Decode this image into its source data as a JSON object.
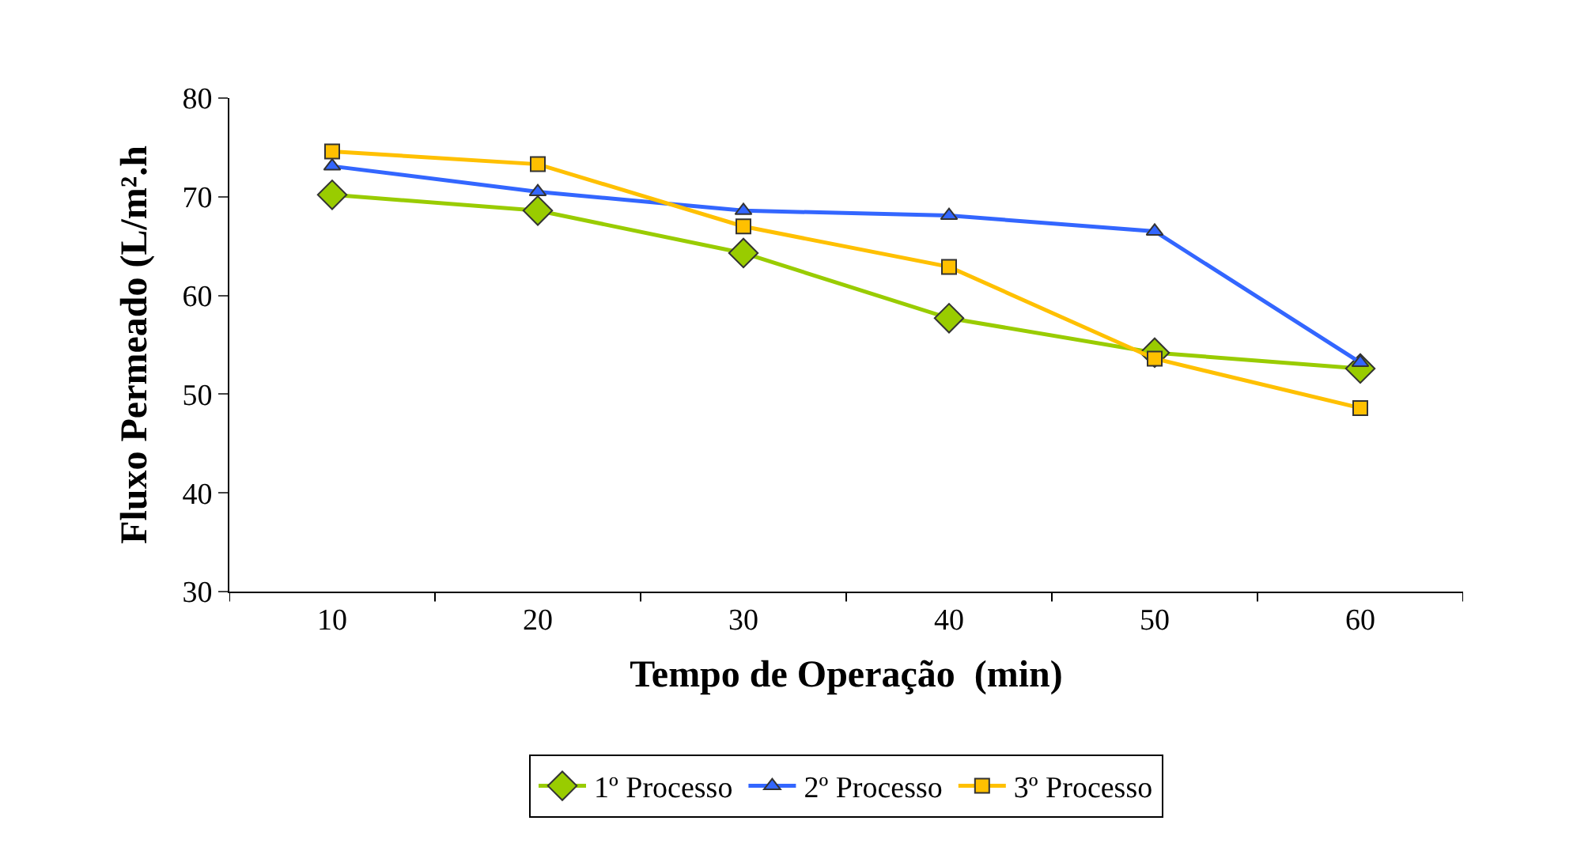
{
  "chart_data": {
    "type": "line",
    "xlabel": "Tempo de Operação  (min)",
    "ylabel": "Fluxo Permeado (L/m².h",
    "categories": [
      "10",
      "20",
      "30",
      "40",
      "50",
      "60"
    ],
    "series": [
      {
        "name": "1º Processo",
        "color": "#99cc00",
        "marker": "diamond",
        "values": [
          70.2,
          68.6,
          64.3,
          57.7,
          54.2,
          52.6
        ]
      },
      {
        "name": "2º Processo",
        "color": "#3366ff",
        "marker": "triangle",
        "values": [
          73.1,
          70.5,
          68.6,
          68.1,
          66.5,
          53.2
        ]
      },
      {
        "name": "3º Processo",
        "color": "#ffc000",
        "marker": "square",
        "values": [
          74.6,
          73.3,
          67.0,
          62.9,
          53.6,
          48.6
        ]
      }
    ],
    "ylim": [
      30,
      80
    ],
    "yticks": [
      30,
      40,
      50,
      60,
      70,
      80
    ],
    "legend": "bottom"
  }
}
